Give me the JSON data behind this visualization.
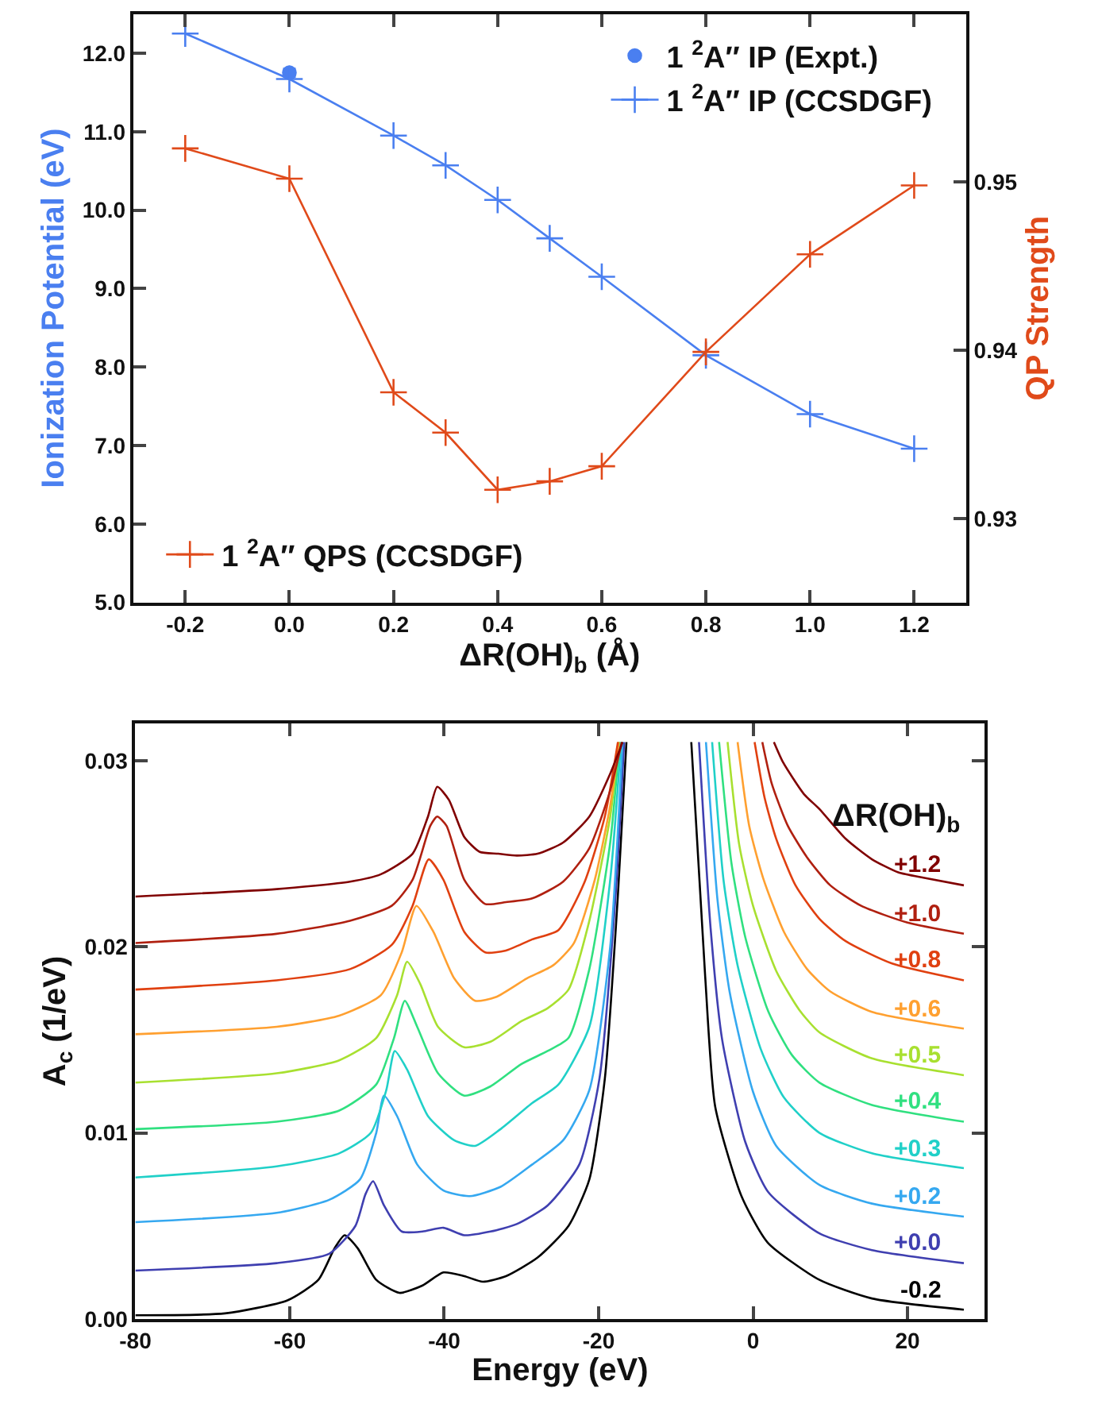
{
  "chart_data": [
    {
      "type": "line",
      "xlabel": "ΔR(OH)$_{b}$ (Å)",
      "ylabel": "Ionization Potential (eV)",
      "y2label": "QP Strength",
      "x": [
        -0.2,
        0.0,
        0.2,
        0.3,
        0.4,
        0.5,
        0.6,
        0.8,
        1.0,
        1.2
      ],
      "xlim": [
        -0.3,
        1.3
      ],
      "xticks": [
        {
          "value": -0.2,
          "label": "-0.2"
        },
        {
          "value": 0,
          "label": "0.0"
        },
        {
          "value": 0.2,
          "label": "0.2"
        },
        {
          "value": 0.4,
          "label": "0.4"
        },
        {
          "value": 0.6,
          "label": "0.6"
        },
        {
          "value": 0.8,
          "label": "0.8"
        },
        {
          "value": 1,
          "label": "1.0"
        },
        {
          "value": 1.2,
          "label": "1.2"
        }
      ],
      "ylim": [
        5.0,
        12.5
      ],
      "yticks": [
        {
          "value": 5,
          "label": "5.0"
        },
        {
          "value": 6,
          "label": "6.0"
        },
        {
          "value": 7,
          "label": "7.0"
        },
        {
          "value": 8,
          "label": "8.0"
        },
        {
          "value": 9,
          "label": "9.0"
        },
        {
          "value": 10,
          "label": "10.0"
        },
        {
          "value": 11,
          "label": "11.0"
        },
        {
          "value": 12,
          "label": "12.0"
        }
      ],
      "y2lim": [
        0.925,
        0.96
      ],
      "y2ticks": [
        0.93,
        0.94,
        0.95
      ],
      "legend": "top right",
      "marker": "cross",
      "line_style": "solid",
      "series": [
        {
          "name": "1 $^{2}$A″ IP (Expt.)",
          "type": "scatter",
          "marker": "circle",
          "color": "#4a7ff0",
          "x": [
            0.0
          ],
          "values": [
            11.75
          ],
          "errors": [
            0.05
          ]
        },
        {
          "name": "1 $^{2}$A″ IP (CCSDGF)",
          "color": "#4a7ff0",
          "values": [
            12.25,
            11.67,
            10.95,
            10.57,
            10.13,
            9.64,
            9.15,
            8.15,
            7.4,
            6.96
          ]
        },
        {
          "name": "1 $^{2}$A″ QPS (CCSDGF)",
          "color": "#e04a1a",
          "axis": "y2",
          "values": [
            0.952,
            0.9502,
            0.9375,
            0.9351,
            0.9317,
            0.9322,
            0.9331,
            0.9399,
            0.9457,
            0.9498
          ]
        }
      ]
    },
    {
      "type": "line",
      "xlabel": "Energy (eV)",
      "ylabel": "A$_{c}$ (1/eV)",
      "legend_title": "ΔR(OH)$_{b}$",
      "legend": false,
      "line_style": "solid",
      "xlim": [
        -80,
        30
      ],
      "xticks": [
        -80,
        -60,
        -40,
        -20,
        0,
        20
      ],
      "ylim": [
        0,
        0.032
      ],
      "yticks": [
        {
          "value": 0,
          "label": "0.00"
        },
        {
          "value": 0.01,
          "label": "0.01"
        },
        {
          "value": 0.02,
          "label": "0.02"
        },
        {
          "value": 0.03,
          "label": "0.03"
        }
      ],
      "series": [
        {
          "name": "-0.2",
          "color": "#000000",
          "x": [
            -80,
            -68.4,
            -60.3,
            -56.3,
            -54.2,
            -52.9,
            -51.2,
            -48.8,
            -45.8,
            -42.8,
            -40.1,
            -37.4,
            -35.0,
            -32.0,
            -27.9,
            -23.9,
            -21.2,
            -19.2,
            -17.5,
            -16.4,
            -12,
            -8.0,
            -6.2,
            -4.9,
            -1.5,
            1.9,
            8.6,
            15.4,
            27.3
          ],
          "values": [
            0.0002,
            0.0003,
            0.001,
            0.0021,
            0.0038,
            0.0045,
            0.0038,
            0.0021,
            0.0014,
            0.0018,
            0.0025,
            0.0023,
            0.002,
            0.0023,
            0.0033,
            0.005,
            0.0075,
            0.0129,
            0.0228,
            0.031,
            null,
            0.031,
            0.0184,
            0.0114,
            0.0066,
            0.0041,
            0.0021,
            0.0011,
            0.0005
          ]
        },
        {
          "name": "+0.0",
          "color": "#3f3fb0",
          "x": [
            -80,
            -61.7,
            -54.9,
            -51.5,
            -50.2,
            -49.2,
            -47.8,
            -45.5,
            -42.8,
            -40.1,
            -37.4,
            -34.0,
            -30.6,
            -26.6,
            -22.5,
            -19.9,
            -17.8,
            -16.7,
            -12,
            -7.0,
            -5.5,
            -4.0,
            -1.0,
            2.0,
            8.6,
            15.4,
            27.3
          ],
          "values": [
            0.0026,
            0.003,
            0.0035,
            0.005,
            0.0067,
            0.0074,
            0.0061,
            0.0047,
            0.0047,
            0.0049,
            0.0045,
            0.0047,
            0.0051,
            0.0061,
            0.0083,
            0.0129,
            0.0228,
            0.031,
            null,
            0.031,
            0.021,
            0.015,
            0.0095,
            0.0068,
            0.0046,
            0.0037,
            0.003
          ]
        },
        {
          "name": "+0.2",
          "color": "#35a8f0",
          "x": [
            -80,
            -61.7,
            -54.9,
            -50.9,
            -48.8,
            -47.8,
            -46.1,
            -43.5,
            -40.1,
            -36.7,
            -32.7,
            -28.6,
            -24.6,
            -21.2,
            -18.5,
            -16.9,
            -12,
            -6.1,
            -4.6,
            -3.0,
            0,
            3,
            8.6,
            15.4,
            27.3
          ],
          "values": [
            0.0052,
            0.0057,
            0.0064,
            0.0075,
            0.01,
            0.012,
            0.0109,
            0.0083,
            0.0069,
            0.0066,
            0.0071,
            0.0083,
            0.0096,
            0.0123,
            0.02,
            0.031,
            null,
            0.031,
            0.0225,
            0.0175,
            0.0122,
            0.0093,
            0.0072,
            0.0062,
            0.0055
          ]
        },
        {
          "name": "+0.3",
          "color": "#20d0c8",
          "x": [
            -80,
            -61.7,
            -53.6,
            -49.5,
            -47.5,
            -46.4,
            -44.8,
            -42.1,
            -38.7,
            -36.0,
            -32.7,
            -28.6,
            -25.2,
            -21.2,
            -18.5,
            -17.1,
            -12,
            -5.3,
            -3.8,
            -2.0,
            1,
            4,
            8.6,
            15.4,
            27.3
          ],
          "values": [
            0.0076,
            0.0082,
            0.0089,
            0.01,
            0.0123,
            0.0144,
            0.0134,
            0.0109,
            0.0096,
            0.0093,
            0.0102,
            0.0116,
            0.0126,
            0.0157,
            0.0236,
            0.031,
            null,
            0.031,
            0.0235,
            0.019,
            0.0145,
            0.0119,
            0.01,
            0.0089,
            0.0081
          ]
        },
        {
          "name": "+0.4",
          "color": "#30e080",
          "x": [
            -80,
            -61.7,
            -53.6,
            -48.8,
            -46.5,
            -45.1,
            -43.5,
            -40.8,
            -37.4,
            -34.0,
            -30.0,
            -26.6,
            -23.9,
            -21.2,
            -18.5,
            -17.3,
            -12,
            -4.4,
            -2.8,
            -1.0,
            2,
            5,
            8.6,
            15.4,
            27.3
          ],
          "values": [
            0.0102,
            0.0106,
            0.0112,
            0.0126,
            0.0151,
            0.0171,
            0.0157,
            0.0132,
            0.012,
            0.0125,
            0.0137,
            0.0144,
            0.0151,
            0.0188,
            0.0256,
            0.031,
            null,
            0.031,
            0.0245,
            0.0205,
            0.0165,
            0.0142,
            0.0127,
            0.0115,
            0.0106
          ]
        },
        {
          "name": "+0.5",
          "color": "#a8e030",
          "x": [
            -80,
            -61.7,
            -53.6,
            -48.8,
            -46.1,
            -44.8,
            -43.1,
            -40.8,
            -37.4,
            -34.0,
            -30.0,
            -26.6,
            -23.9,
            -21.2,
            -18.5,
            -17.4,
            -12,
            -3.3,
            -1.8,
            0,
            3,
            6,
            8.6,
            15.4,
            27.3
          ],
          "values": [
            0.0127,
            0.0132,
            0.0139,
            0.0151,
            0.0174,
            0.0192,
            0.018,
            0.0157,
            0.0146,
            0.0149,
            0.016,
            0.0167,
            0.0177,
            0.0214,
            0.027,
            0.031,
            null,
            0.031,
            0.0255,
            0.0222,
            0.0187,
            0.0166,
            0.0154,
            0.014,
            0.0131
          ]
        },
        {
          "name": "+0.6",
          "color": "#ffa030",
          "x": [
            -80,
            -61.7,
            -53.6,
            -48.2,
            -45.5,
            -43.6,
            -41.4,
            -38.7,
            -36.0,
            -33.3,
            -29.3,
            -25.9,
            -23.2,
            -20.5,
            -18.5,
            -17.4,
            -12,
            -2.0,
            -0.5,
            1.3,
            4,
            7,
            10,
            15.4,
            27.3
          ],
          "values": [
            0.0153,
            0.0157,
            0.0163,
            0.0174,
            0.0197,
            0.0222,
            0.0208,
            0.0183,
            0.0171,
            0.0173,
            0.0183,
            0.019,
            0.0202,
            0.0236,
            0.0276,
            0.031,
            null,
            0.031,
            0.0265,
            0.0237,
            0.0208,
            0.0188,
            0.0176,
            0.0165,
            0.0156
          ]
        },
        {
          "name": "+0.8",
          "color": "#e04010",
          "x": [
            -80,
            -61.7,
            -52.2,
            -46.8,
            -44.1,
            -42.0,
            -40.1,
            -37.4,
            -34.7,
            -32.0,
            -28.6,
            -25.2,
            -21.9,
            -19.2,
            -17.5,
            -12,
            0.2,
            1.5,
            3,
            5.5,
            8.6,
            12,
            18,
            27.3
          ],
          "values": [
            0.0177,
            0.0182,
            0.0188,
            0.0201,
            0.0222,
            0.0247,
            0.0236,
            0.0208,
            0.0197,
            0.0198,
            0.0204,
            0.0209,
            0.0234,
            0.027,
            0.031,
            null,
            0.031,
            0.028,
            0.0258,
            0.0233,
            0.0215,
            0.0203,
            0.0191,
            0.0182
          ]
        },
        {
          "name": "+1.0",
          "color": "#b02010",
          "x": [
            -80,
            -61.7,
            -52.2,
            -46.8,
            -44.1,
            -41.8,
            -40.9,
            -39.7,
            -37.4,
            -34.7,
            -32.0,
            -28.6,
            -24.6,
            -21.2,
            -18.5,
            -17.0,
            -12,
            1.2,
            2.4,
            4.5,
            7,
            10,
            14,
            20,
            27.3
          ],
          "values": [
            0.0202,
            0.0207,
            0.0214,
            0.0222,
            0.0236,
            0.0265,
            0.027,
            0.0265,
            0.0236,
            0.0223,
            0.0224,
            0.0226,
            0.0235,
            0.0253,
            0.0284,
            0.031,
            null,
            0.031,
            0.0288,
            0.0265,
            0.0248,
            0.0233,
            0.0222,
            0.0213,
            0.0207
          ]
        },
        {
          "name": "+1.2",
          "color": "#800000",
          "x": [
            -80,
            -61.7,
            -52.2,
            -48.2,
            -44.1,
            -42.1,
            -40.9,
            -39.4,
            -37.4,
            -35.4,
            -33.0,
            -30.6,
            -27.9,
            -24.6,
            -21.2,
            -18.5,
            -16.9,
            -12,
            2.7,
            3.9,
            6.6,
            8.6,
            12.0,
            15.4,
            18.8,
            22.2,
            27.3
          ],
          "values": [
            0.0227,
            0.0231,
            0.0235,
            0.0239,
            0.025,
            0.027,
            0.0286,
            0.0279,
            0.0259,
            0.0251,
            0.025,
            0.0249,
            0.025,
            0.0256,
            0.027,
            0.0293,
            0.031,
            null,
            0.031,
            0.0299,
            0.0282,
            0.0274,
            0.0258,
            0.0247,
            0.024,
            0.0237,
            0.0233
          ]
        }
      ]
    }
  ]
}
